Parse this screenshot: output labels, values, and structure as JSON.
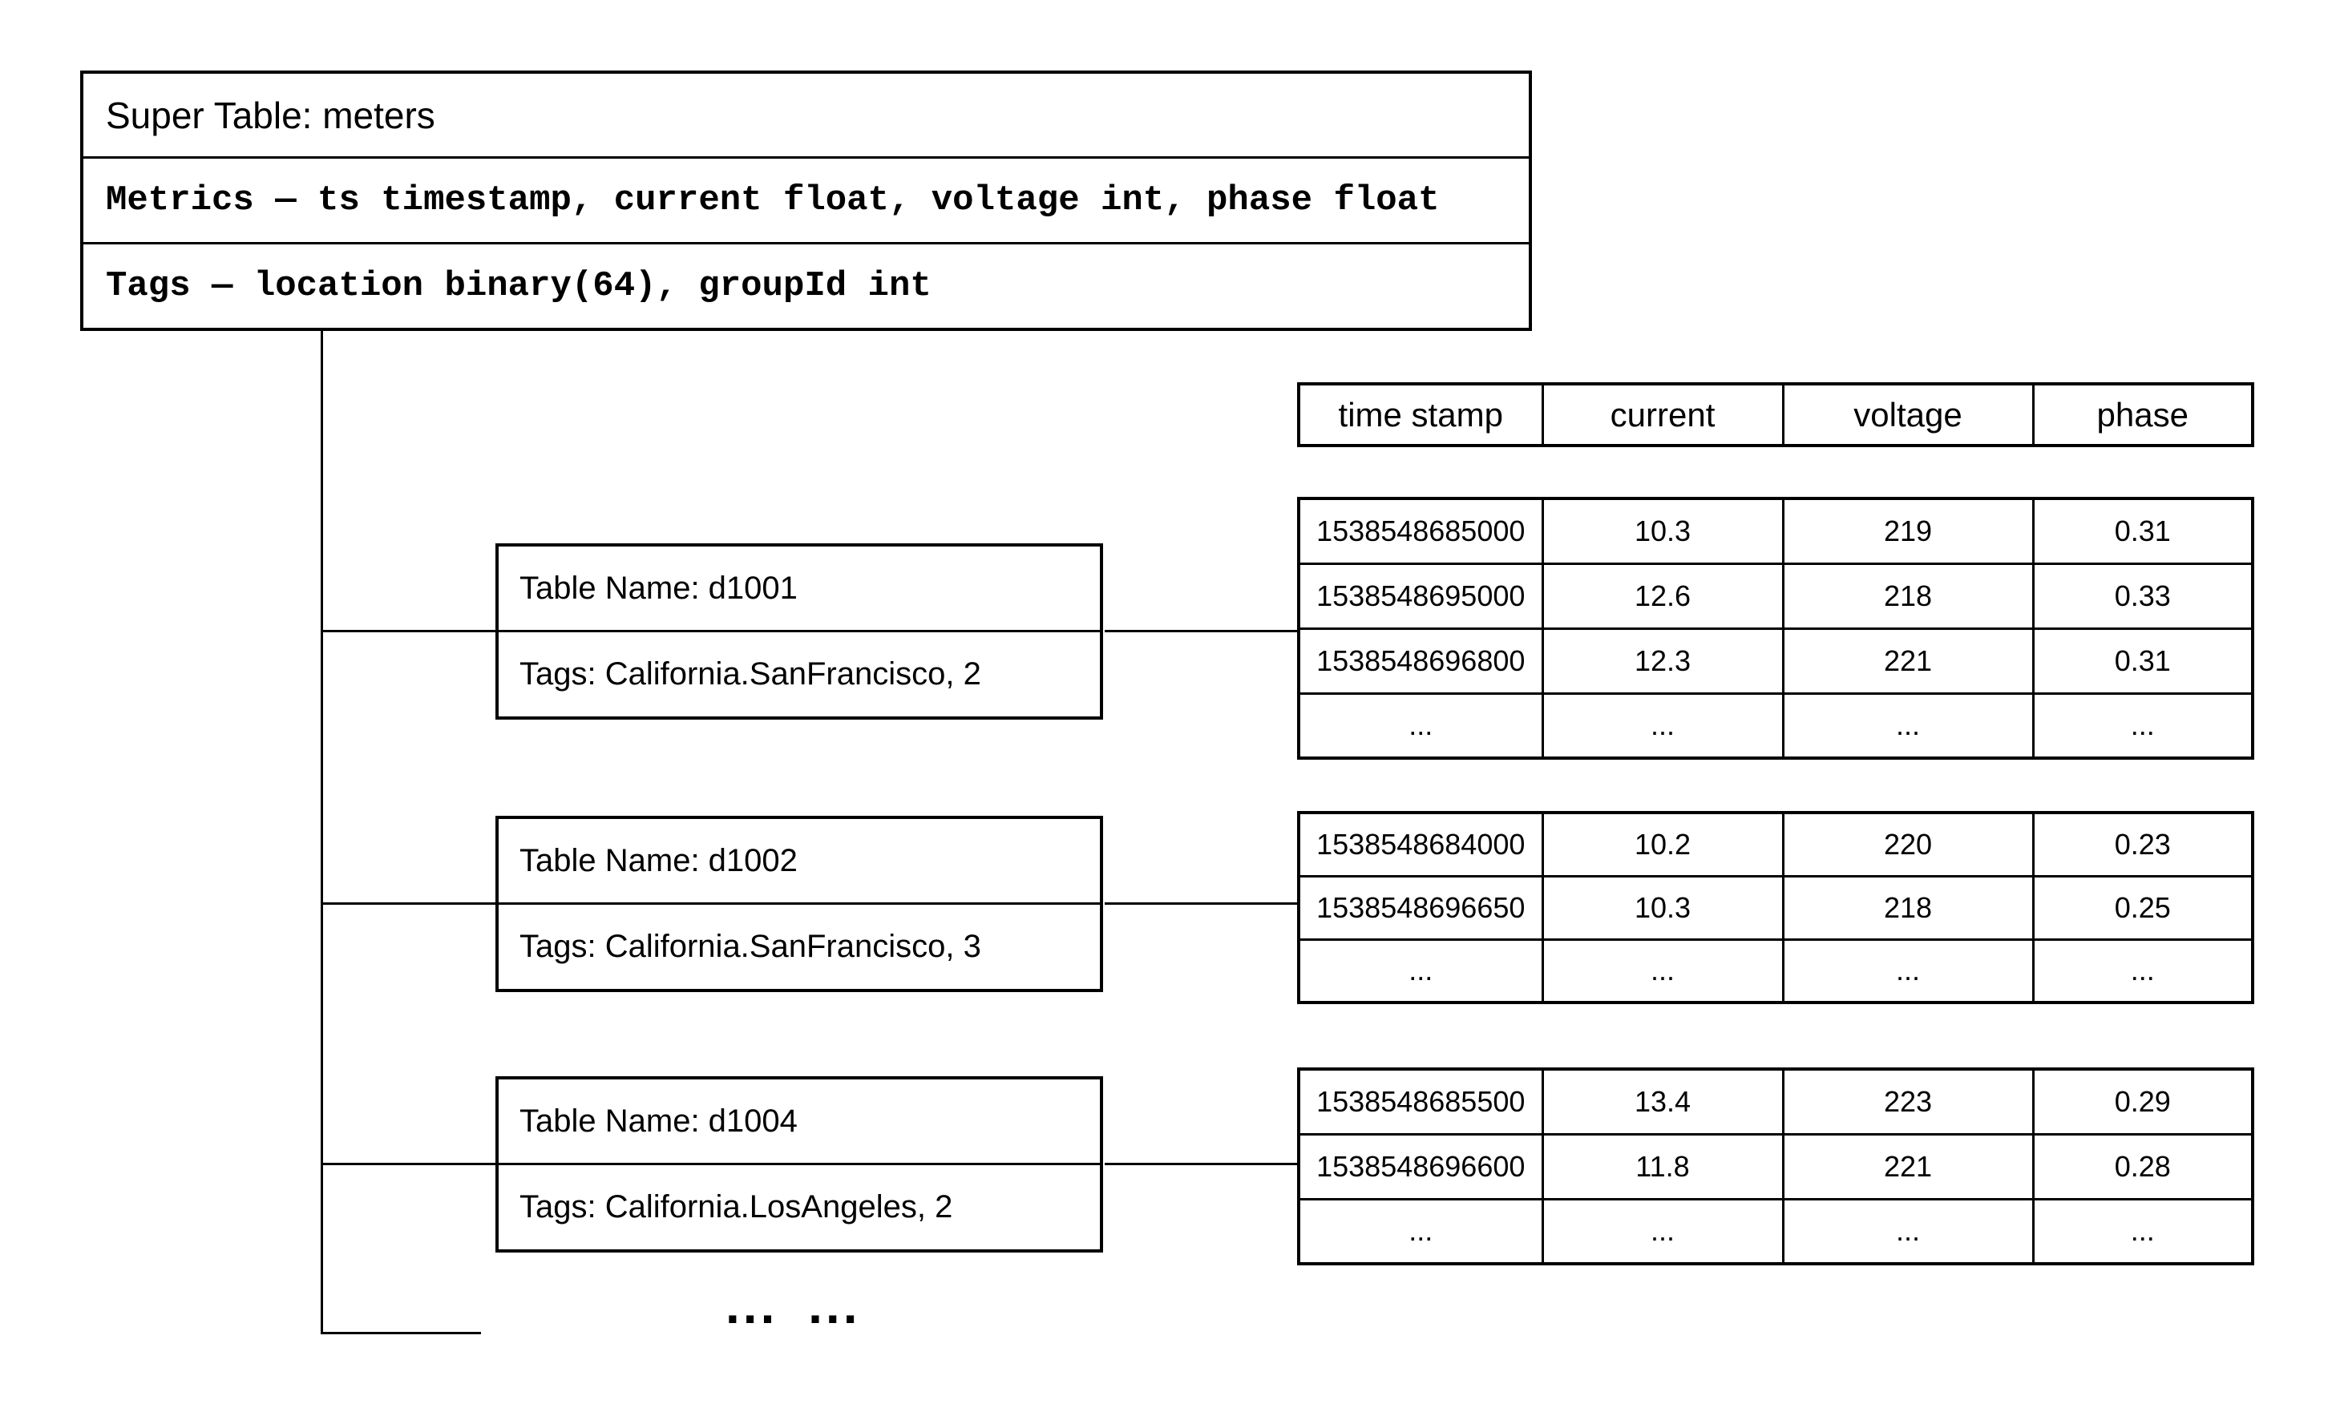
{
  "super_table": {
    "title": "Super Table: meters",
    "metrics": "Metrics — ts timestamp, current float, voltage int, phase float",
    "tags": "Tags — location binary(64), groupId int"
  },
  "columns": [
    "time stamp",
    "current",
    "voltage",
    "phase"
  ],
  "subtables": [
    {
      "name": "Table Name: d1001",
      "tags": "Tags: California.SanFrancisco, 2",
      "rows": [
        [
          "1538548685000",
          "10.3",
          "219",
          "0.31"
        ],
        [
          "1538548695000",
          "12.6",
          "218",
          "0.33"
        ],
        [
          "1538548696800",
          "12.3",
          "221",
          "0.31"
        ],
        [
          "...",
          "...",
          "...",
          "..."
        ]
      ]
    },
    {
      "name": "Table Name: d1002",
      "tags": "Tags: California.SanFrancisco, 3",
      "rows": [
        [
          "1538548684000",
          "10.2",
          "220",
          "0.23"
        ],
        [
          "1538548696650",
          "10.3",
          "218",
          "0.25"
        ],
        [
          "...",
          "...",
          "...",
          "..."
        ]
      ]
    },
    {
      "name": "Table Name: d1004",
      "tags": "Tags: California.LosAngeles, 2",
      "rows": [
        [
          "1538548685500",
          "13.4",
          "223",
          "0.29"
        ],
        [
          "1538548696600",
          "11.8",
          "221",
          "0.28"
        ],
        [
          "...",
          "...",
          "...",
          "..."
        ]
      ]
    }
  ],
  "more_tables_ellipsis": "... ..."
}
